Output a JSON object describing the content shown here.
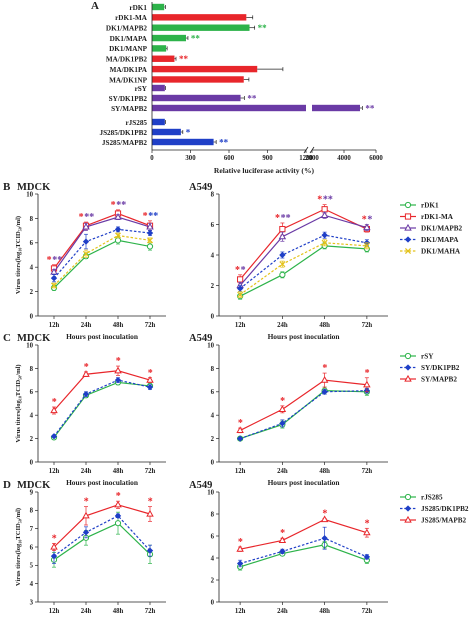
{
  "colors": {
    "red": "#e8262b",
    "green": "#2db34a",
    "purple": "#6a3aa5",
    "blue": "#1f3fc7",
    "yellow": "#e3c21a",
    "axis": "#222222",
    "grid": "#9a9a9a"
  },
  "panel_letters": [
    "A",
    "B",
    "C",
    "D"
  ],
  "chart_data": [
    {
      "panel": "A",
      "type": "bar",
      "orientation": "horizontal",
      "xlabel": "Relative luciferase activity (%)",
      "x_ticks_left": [
        "0",
        "300",
        "600",
        "900",
        "1200"
      ],
      "x_ticks_right": [
        "2000",
        "4000",
        "6000"
      ],
      "x_axis_break": [
        1200,
        2000
      ],
      "groups": [
        {
          "categories": [
            "rDK1",
            "rDK1-MA",
            "DK1/MAPB2",
            "DK1/MAPA",
            "DK1/MANP",
            "MA/DK1PB2",
            "MA/DK1PA",
            "MA/DK1NP"
          ],
          "values": [
            95,
            735,
            760,
            265,
            110,
            175,
            820,
            715
          ],
          "errors": [
            10,
            50,
            40,
            15,
            8,
            12,
            200,
            40
          ],
          "colors": [
            "green",
            "red",
            "green",
            "green",
            "green",
            "red",
            "red",
            "red"
          ],
          "sig": [
            "",
            "",
            "**",
            "**",
            "",
            "**",
            "",
            ""
          ],
          "sig_colors": [
            "",
            "",
            "green",
            "green",
            "",
            "red",
            "",
            ""
          ]
        },
        {
          "categories": [
            "rSY",
            "SY/DK1PB2",
            "SY/MAPB2"
          ],
          "values": [
            100,
            690,
            5000
          ],
          "errors": [
            5,
            30,
            150
          ],
          "colors": [
            "purple",
            "purple",
            "purple"
          ],
          "sig": [
            "",
            "**",
            "**"
          ],
          "sig_colors": [
            "",
            "purple",
            "purple"
          ]
        },
        {
          "categories": [
            "rJS285",
            "JS285/DK1PB2",
            "JS285/MAPB2"
          ],
          "values": [
            100,
            225,
            480
          ],
          "errors": [
            5,
            15,
            20
          ],
          "colors": [
            "blue",
            "blue",
            "blue"
          ],
          "sig": [
            "",
            "*",
            "**"
          ],
          "sig_colors": [
            "",
            "blue",
            "blue"
          ]
        }
      ]
    },
    {
      "panel": "B",
      "type": "line",
      "title": "MDCK",
      "ylabel": "Virus titers(log₁₀TCID₅₀/ml)",
      "xlabel": "Hours post inoculation",
      "categories": [
        "12h",
        "24h",
        "48h",
        "72h"
      ],
      "ylim": [
        0,
        10
      ],
      "yticks": [
        0,
        2,
        4,
        6,
        8,
        10
      ],
      "series": [
        {
          "name": "rDK1",
          "values": [
            2.3,
            4.9,
            6.2,
            5.7
          ],
          "errors": [
            0.2,
            0.2,
            0.3,
            0.3
          ],
          "color": "green",
          "marker": "circle",
          "dash": "solid"
        },
        {
          "name": "rDK1-MA",
          "values": [
            3.9,
            7.4,
            8.4,
            7.4
          ],
          "errors": [
            0.3,
            0.3,
            0.3,
            0.4
          ],
          "color": "red",
          "marker": "square",
          "dash": "solid"
        },
        {
          "name": "DK1/MAPB2",
          "values": [
            3.6,
            7.3,
            8.1,
            7.3
          ],
          "errors": [
            0.2,
            0.3,
            0.2,
            0.3
          ],
          "color": "purple",
          "marker": "triangle",
          "dash": "solid"
        },
        {
          "name": "DK1/MAPA",
          "values": [
            3.1,
            6.1,
            7.1,
            6.8
          ],
          "errors": [
            0.3,
            0.6,
            0.2,
            0.2
          ],
          "color": "blue",
          "marker": "diamond",
          "dash": "dashed"
        },
        {
          "name": "DK1/MAHA",
          "values": [
            2.5,
            5.1,
            6.6,
            6.2
          ],
          "errors": [
            0.2,
            0.3,
            0.2,
            0.2
          ],
          "color": "yellow",
          "marker": "cross",
          "dash": "dashed"
        }
      ],
      "sig": [
        [
          {
            "t": "*",
            "c": "red"
          },
          {
            "t": "**",
            "c": "purple"
          }
        ],
        [
          {
            "t": "*",
            "c": "red"
          },
          {
            "t": "**",
            "c": "purple"
          }
        ],
        [
          {
            "t": "*",
            "c": "red"
          },
          {
            "t": "**",
            "c": "purple"
          }
        ],
        [
          {
            "t": "*",
            "c": "red"
          },
          {
            "t": "**",
            "c": "blue"
          }
        ]
      ]
    },
    {
      "panel": "B",
      "type": "line",
      "title": "A549",
      "xlabel": "Hours post inoculation",
      "categories": [
        "12h",
        "24h",
        "48h",
        "72h"
      ],
      "ylim": [
        0,
        8
      ],
      "yticks": [
        0,
        2,
        4,
        6,
        8
      ],
      "series": [
        {
          "name": "rDK1",
          "values": [
            1.3,
            2.7,
            4.6,
            4.4
          ],
          "errors": [
            0.2,
            0.2,
            0.2,
            0.2
          ],
          "color": "green",
          "marker": "circle",
          "dash": "solid"
        },
        {
          "name": "rDK1-MA",
          "values": [
            2.4,
            5.7,
            7.0,
            5.7
          ],
          "errors": [
            0.3,
            0.4,
            0.3,
            0.2
          ],
          "color": "red",
          "marker": "square",
          "dash": "solid"
        },
        {
          "name": "DK1/MAPB2",
          "values": [
            2.0,
            5.2,
            6.6,
            5.8
          ],
          "errors": [
            0.2,
            0.3,
            0.2,
            0.2
          ],
          "color": "purple",
          "marker": "triangle",
          "dash": "solid"
        },
        {
          "name": "DK1/MAPA",
          "values": [
            1.8,
            4.0,
            5.3,
            4.8
          ],
          "errors": [
            0.2,
            0.2,
            0.2,
            0.2
          ],
          "color": "blue",
          "marker": "diamond",
          "dash": "dashed"
        },
        {
          "name": "DK1/MAHA",
          "values": [
            1.4,
            3.4,
            4.8,
            4.6
          ],
          "errors": [
            0.2,
            0.2,
            0.2,
            0.2
          ],
          "color": "yellow",
          "marker": "cross",
          "dash": "dashed"
        }
      ],
      "sig": [
        [
          {
            "t": "*",
            "c": "red"
          },
          {
            "t": "*",
            "c": "purple"
          }
        ],
        [
          {
            "t": "*",
            "c": "red"
          },
          {
            "t": "**",
            "c": "purple"
          }
        ],
        [
          {
            "t": "*",
            "c": "red"
          },
          {
            "t": "**",
            "c": "purple"
          }
        ],
        [
          {
            "t": "*",
            "c": "red"
          },
          {
            "t": "*",
            "c": "purple"
          }
        ]
      ]
    },
    {
      "panel": "C",
      "type": "line",
      "title": "MDCK",
      "ylabel": "Virus titers(log₁₀TCID₅₀/ml)",
      "xlabel": "Hours post inoculation",
      "categories": [
        "12h",
        "24h",
        "48h",
        "72h"
      ],
      "ylim": [
        0,
        10
      ],
      "yticks": [
        0,
        2,
        4,
        6,
        8,
        10
      ],
      "series": [
        {
          "name": "rSY",
          "values": [
            2.1,
            5.7,
            6.8,
            6.5
          ],
          "errors": [
            0.1,
            0.2,
            0.2,
            0.2
          ],
          "color": "green",
          "marker": "circle",
          "dash": "solid"
        },
        {
          "name": "SY/DK1PB2",
          "values": [
            2.2,
            5.8,
            7.0,
            6.4
          ],
          "errors": [
            0.1,
            0.2,
            0.2,
            0.2
          ],
          "color": "blue",
          "marker": "diamond",
          "dash": "dashed"
        },
        {
          "name": "SY/MAPB2",
          "values": [
            4.4,
            7.5,
            7.8,
            7.0
          ],
          "errors": [
            0.3,
            0.2,
            0.4,
            0.2
          ],
          "color": "red",
          "marker": "triangle",
          "dash": "solid"
        }
      ],
      "sig": [
        [
          {
            "t": "*",
            "c": "red"
          }
        ],
        [
          {
            "t": "*",
            "c": "red"
          }
        ],
        [
          {
            "t": "*",
            "c": "red"
          }
        ],
        [
          {
            "t": "*",
            "c": "red"
          }
        ]
      ]
    },
    {
      "panel": "C",
      "type": "line",
      "title": "A549",
      "xlabel": "Hours post inoculation",
      "categories": [
        "12h",
        "24h",
        "48h",
        "72h"
      ],
      "ylim": [
        0,
        10
      ],
      "yticks": [
        0,
        2,
        4,
        6,
        8,
        10
      ],
      "series": [
        {
          "name": "rSY",
          "values": [
            2.0,
            3.2,
            6.1,
            6.0
          ],
          "errors": [
            0.1,
            0.3,
            0.3,
            0.3
          ],
          "color": "green",
          "marker": "circle",
          "dash": "solid"
        },
        {
          "name": "SY/DK1PB2",
          "values": [
            2.0,
            3.3,
            6.0,
            6.1
          ],
          "errors": [
            0.1,
            0.3,
            0.2,
            0.2
          ],
          "color": "blue",
          "marker": "diamond",
          "dash": "dashed"
        },
        {
          "name": "SY/MAPB2",
          "values": [
            2.7,
            4.5,
            7.0,
            6.6
          ],
          "errors": [
            0.2,
            0.3,
            0.6,
            0.6
          ],
          "color": "red",
          "marker": "triangle",
          "dash": "solid"
        }
      ],
      "sig": [
        [
          {
            "t": "*",
            "c": "red"
          }
        ],
        [
          {
            "t": "*",
            "c": "red"
          }
        ],
        [
          {
            "t": "*",
            "c": "red"
          }
        ],
        [
          {
            "t": "*",
            "c": "red"
          }
        ]
      ]
    },
    {
      "panel": "D",
      "type": "line",
      "title": "MDCK",
      "ylabel": "Virus titers(log₁₀TCID₅₀/ml)",
      "xlabel": "Hours post inoculation",
      "categories": [
        "12h",
        "24h",
        "48h",
        "72h"
      ],
      "ylim": [
        3,
        9
      ],
      "yticks": [
        3,
        4,
        5,
        6,
        7,
        8,
        9
      ],
      "series": [
        {
          "name": "rJS285",
          "values": [
            5.3,
            6.5,
            7.3,
            5.6
          ],
          "errors": [
            0.4,
            0.4,
            0.6,
            0.5
          ],
          "color": "green",
          "marker": "circle",
          "dash": "solid"
        },
        {
          "name": "JS285/DK1PB2",
          "values": [
            5.5,
            6.8,
            7.7,
            5.8
          ],
          "errors": [
            0.4,
            0.3,
            0.1,
            0.3
          ],
          "color": "blue",
          "marker": "diamond",
          "dash": "dashed"
        },
        {
          "name": "JS285/MAPB2",
          "values": [
            6.0,
            7.7,
            8.3,
            7.8
          ],
          "errors": [
            0.2,
            0.5,
            0.2,
            0.4
          ],
          "color": "red",
          "marker": "triangle",
          "dash": "solid"
        }
      ],
      "sig": [
        [
          {
            "t": "*",
            "c": "red"
          }
        ],
        [
          {
            "t": "*",
            "c": "red"
          }
        ],
        [
          {
            "t": "*",
            "c": "red"
          }
        ],
        [
          {
            "t": "*",
            "c": "red"
          }
        ]
      ]
    },
    {
      "panel": "D",
      "type": "line",
      "title": "A549",
      "xlabel": "Hours post inoculation",
      "categories": [
        "12h",
        "24h",
        "48h",
        "72h"
      ],
      "ylim": [
        0,
        10
      ],
      "yticks": [
        0,
        2,
        4,
        6,
        8,
        10
      ],
      "series": [
        {
          "name": "rJS285",
          "values": [
            3.2,
            4.4,
            5.2,
            3.8
          ],
          "errors": [
            0.3,
            0.2,
            0.3,
            0.3
          ],
          "color": "green",
          "marker": "circle",
          "dash": "solid"
        },
        {
          "name": "JS285/DK1PB2",
          "values": [
            3.5,
            4.6,
            5.8,
            4.1
          ],
          "errors": [
            0.3,
            0.2,
            1.0,
            0.2
          ],
          "color": "blue",
          "marker": "diamond",
          "dash": "dashed"
        },
        {
          "name": "JS285/MAPB2",
          "values": [
            4.8,
            5.6,
            7.5,
            6.3
          ],
          "errors": [
            0.2,
            0.2,
            0.1,
            0.4
          ],
          "color": "red",
          "marker": "triangle",
          "dash": "solid"
        }
      ],
      "sig": [
        [
          {
            "t": "*",
            "c": "red"
          }
        ],
        [
          {
            "t": "*",
            "c": "red"
          }
        ],
        [
          {
            "t": "*",
            "c": "red"
          }
        ],
        [
          {
            "t": "*",
            "c": "red"
          }
        ]
      ]
    }
  ]
}
